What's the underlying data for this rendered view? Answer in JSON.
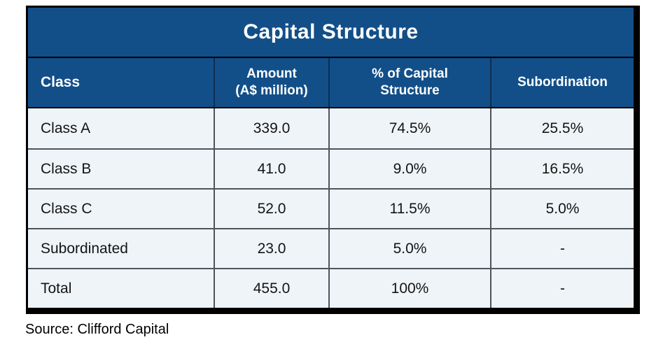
{
  "chart_data": {
    "type": "table",
    "title": "Capital Structure",
    "columns": [
      "Class",
      "Amount (A$ million)",
      "% of Capital Structure",
      "Subordination"
    ],
    "rows": [
      [
        "Class A",
        339.0,
        "74.5%",
        "25.5%"
      ],
      [
        "Class B",
        41.0,
        "9.0%",
        "16.5%"
      ],
      [
        "Class C",
        52.0,
        "11.5%",
        "5.0%"
      ],
      [
        "Subordinated",
        23.0,
        "5.0%",
        "-"
      ],
      [
        "Total",
        455.0,
        "100%",
        "-"
      ]
    ],
    "source": "Source: Clifford Capital"
  },
  "table": {
    "title": "Capital Structure",
    "headers": [
      "Class",
      "Amount\n(A$ million)",
      "% of Capital\nStructure",
      "Subordination"
    ],
    "rows": [
      {
        "cells": [
          "Class A",
          "339.0",
          "74.5%",
          "25.5%"
        ]
      },
      {
        "cells": [
          "Class B",
          "41.0",
          "9.0%",
          "16.5%"
        ]
      },
      {
        "cells": [
          "Class C",
          "52.0",
          "11.5%",
          "5.0%"
        ]
      },
      {
        "cells": [
          "Subordinated",
          "23.0",
          "5.0%",
          "-"
        ]
      },
      {
        "cells": [
          "Total",
          "455.0",
          "100%",
          "-"
        ]
      }
    ]
  },
  "source_note": "Source: Clifford Capital",
  "colors": {
    "header_blue": "#124f88",
    "header_divider": "#0d2f52",
    "body_background": "#eff4f8",
    "body_border": "#4d555b",
    "outer_border": "#000000"
  }
}
